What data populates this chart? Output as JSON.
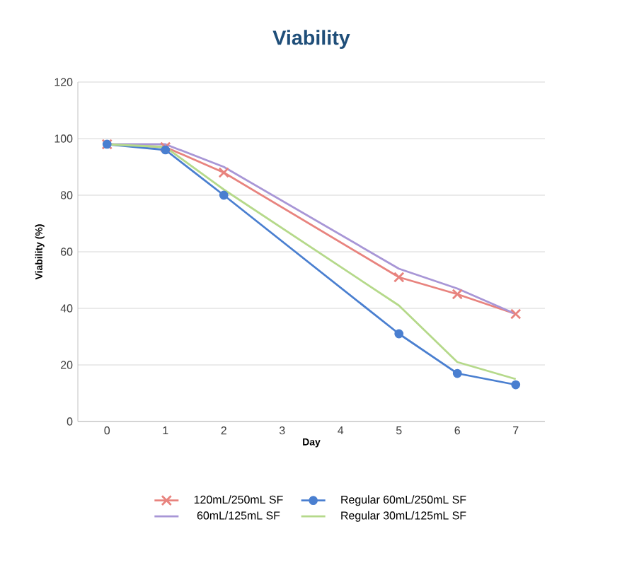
{
  "chart_data": {
    "type": "line",
    "title": "Viability",
    "xlabel": "Day",
    "ylabel": "Viability (%)",
    "x": [
      0,
      1,
      2,
      5,
      6,
      7
    ],
    "xlim": [
      -0.5,
      7.5
    ],
    "xticks": [
      0,
      1,
      2,
      3,
      4,
      5,
      6,
      7
    ],
    "ylim": [
      0,
      120
    ],
    "yticks": [
      0,
      20,
      40,
      60,
      80,
      100,
      120
    ],
    "grid": "y",
    "legend": "bottom",
    "series": [
      {
        "name": "120mL/250mL SF",
        "color": "#e8837e",
        "marker": "cross",
        "values": [
          98,
          97,
          88,
          51,
          45,
          38
        ]
      },
      {
        "name": "Regular 60mL/250mL SF",
        "color": "#4a7fd0",
        "marker": "circle",
        "values": [
          98,
          96,
          80,
          31,
          17,
          13
        ]
      },
      {
        "name": "60mL/125mL SF",
        "color": "#a896d6",
        "marker": "none",
        "values": [
          98,
          98,
          90,
          54,
          47,
          38
        ]
      },
      {
        "name": "Regular 30mL/125mL SF",
        "color": "#b5d98a",
        "marker": "none",
        "values": [
          98,
          97,
          82,
          41,
          21,
          15
        ]
      }
    ]
  }
}
